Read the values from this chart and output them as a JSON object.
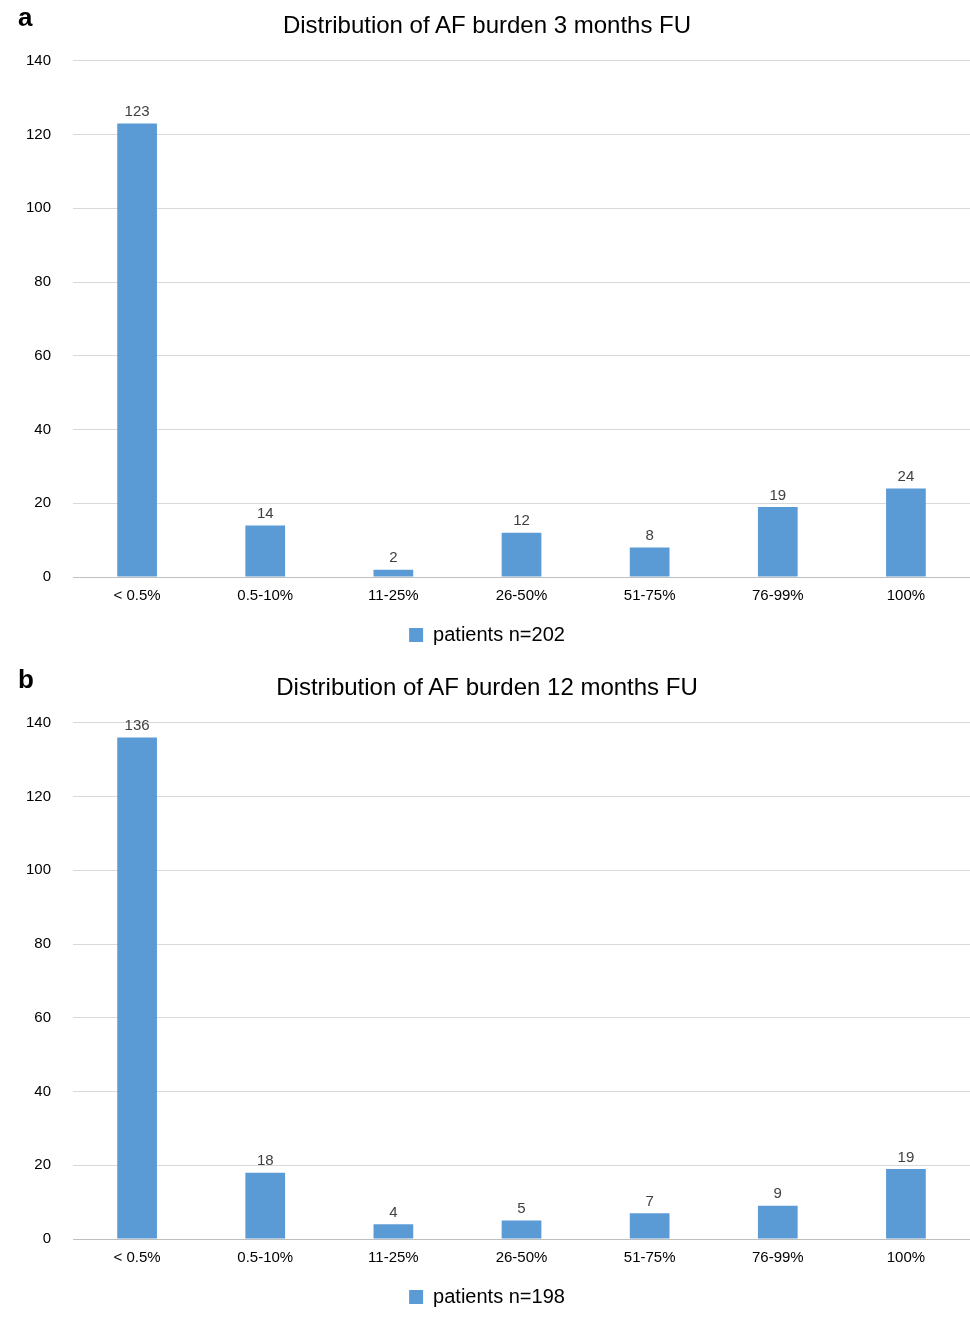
{
  "chart_data": [
    {
      "type": "bar",
      "title": "Distribution of AF burden 3 months FU",
      "annotations": [
        "a"
      ],
      "categories": [
        "< 0.5%",
        "0.5-10%",
        "11-25%",
        "26-50%",
        "51-75%",
        "76-99%",
        "100%"
      ],
      "series": [
        {
          "name": "patients n=202",
          "color": "#5b9bd5",
          "values": [
            123,
            14,
            2,
            12,
            8,
            19,
            24
          ]
        }
      ],
      "ylim": [
        0,
        140
      ],
      "yticks": [
        0,
        20,
        40,
        60,
        80,
        100,
        120,
        140
      ],
      "grid": "y",
      "legend": "bottom",
      "data_labels": true
    },
    {
      "type": "bar",
      "title": "Distribution of AF burden 12 months FU",
      "annotations": [
        "b"
      ],
      "categories": [
        "< 0.5%",
        "0.5-10%",
        "11-25%",
        "26-50%",
        "51-75%",
        "76-99%",
        "100%"
      ],
      "series": [
        {
          "name": "patients n=198",
          "color": "#5b9bd5",
          "values": [
            136,
            18,
            4,
            5,
            7,
            9,
            19
          ]
        }
      ],
      "ylim": [
        0,
        140
      ],
      "yticks": [
        0,
        20,
        40,
        60,
        80,
        100,
        120,
        140
      ],
      "grid": "y",
      "legend": "bottom",
      "data_labels": true
    }
  ]
}
